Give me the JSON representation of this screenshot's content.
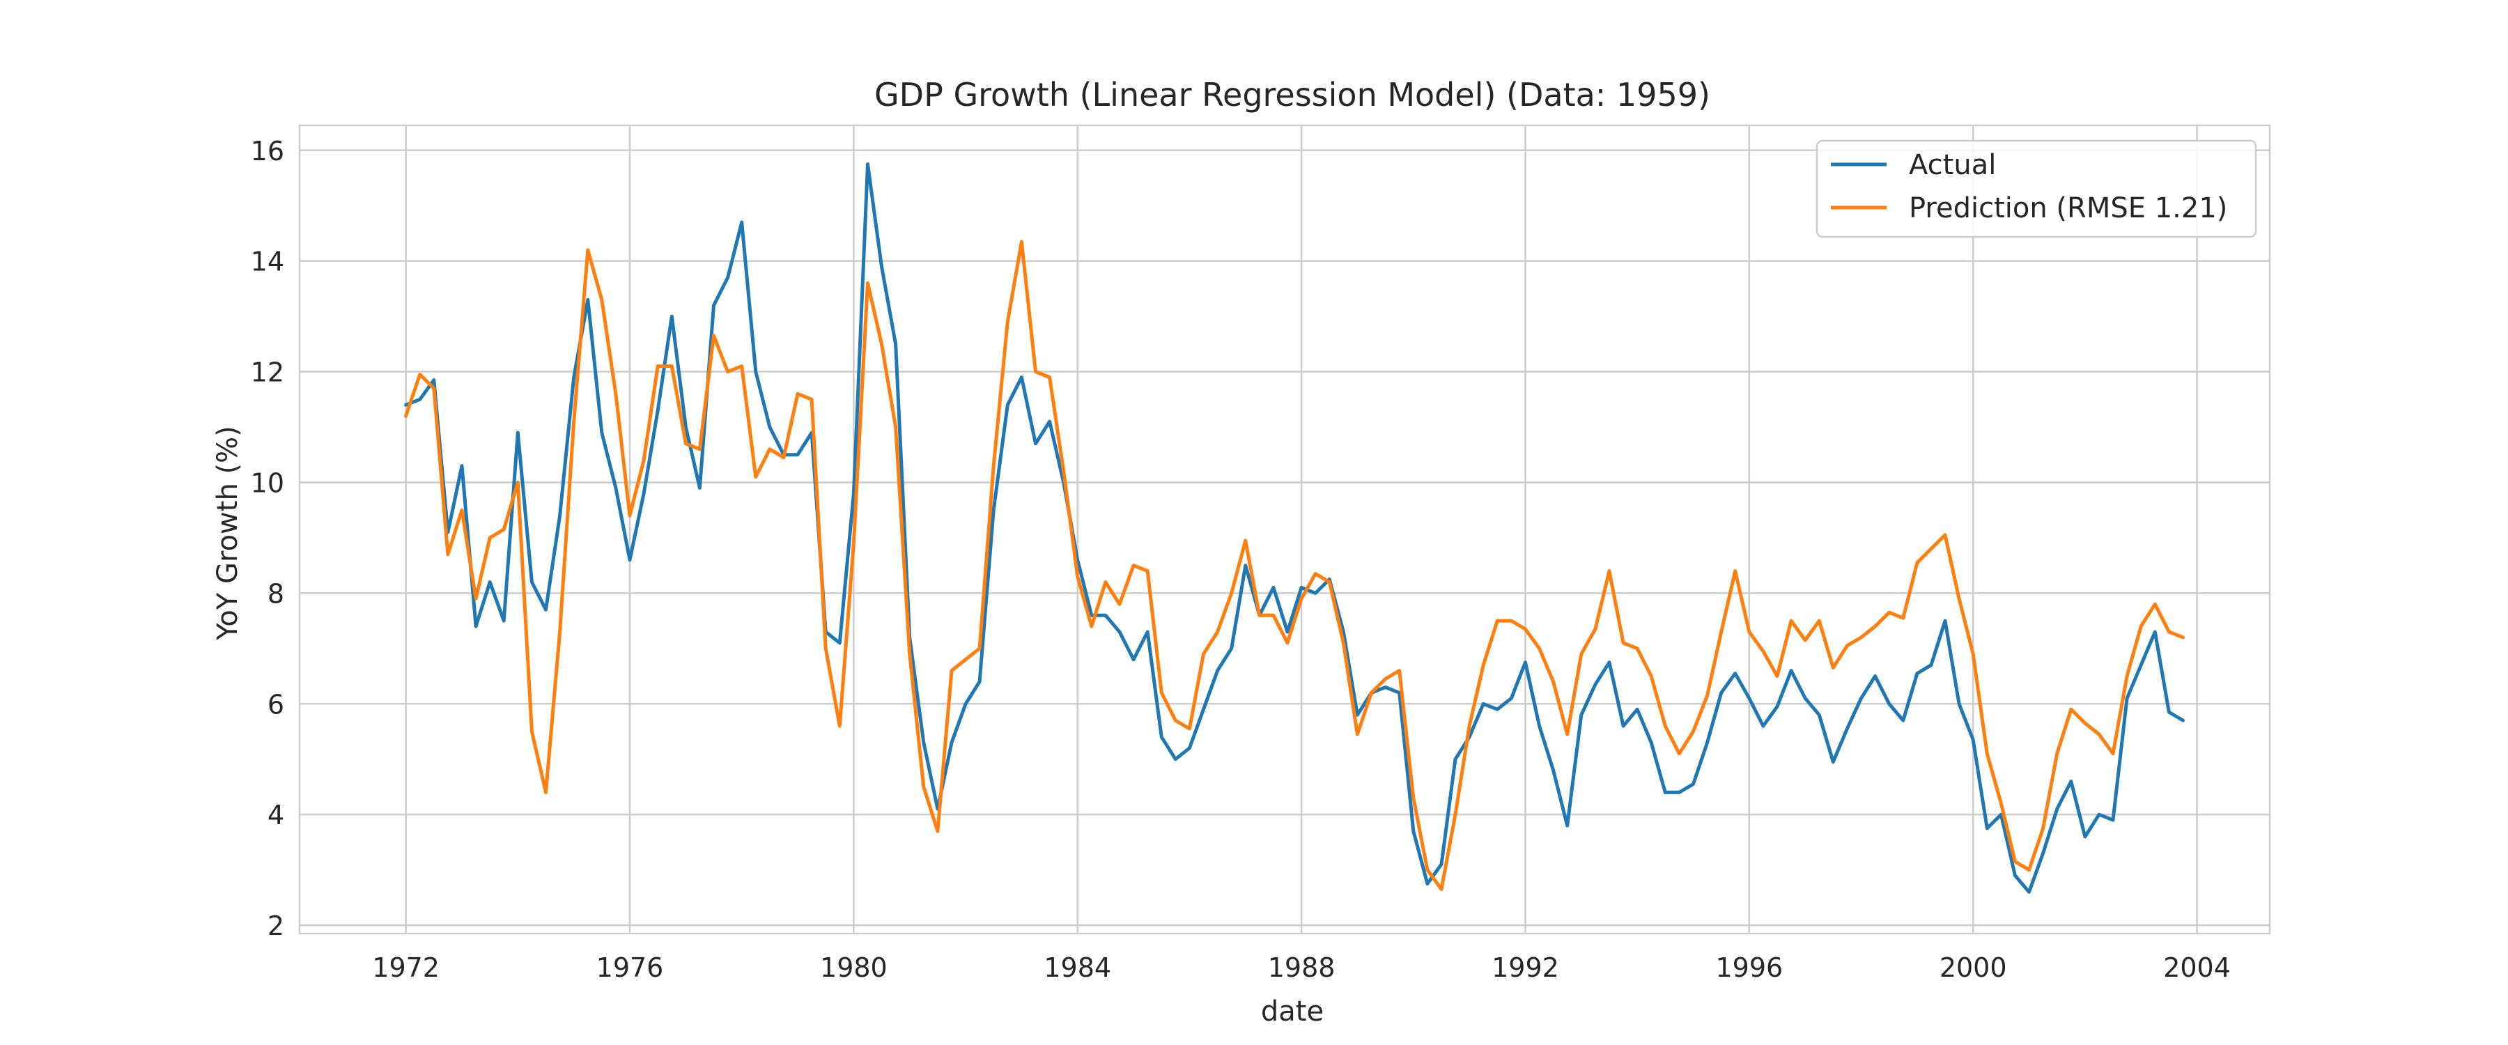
{
  "chart_data": {
    "type": "line",
    "title": "GDP Growth (Linear Regression Model) (Data: 1959)",
    "xlabel": "date",
    "ylabel": "YoY Growth (%)",
    "x_ticks": [
      "1972",
      "1976",
      "1980",
      "1984",
      "1988",
      "1992",
      "1996",
      "2000",
      "2004"
    ],
    "y_ticks": [
      "2",
      "4",
      "6",
      "8",
      "10",
      "12",
      "14",
      "16"
    ],
    "xlim": [
      1970.1,
      2005.3
    ],
    "ylim": [
      1.85,
      16.45
    ],
    "grid": true,
    "legend_position": "top-right",
    "x": [
      "1972-01",
      "1972-04",
      "1972-07",
      "1972-10",
      "1973-01",
      "1973-04",
      "1973-07",
      "1973-10",
      "1974-01",
      "1974-04",
      "1974-07",
      "1974-10",
      "1975-01",
      "1975-04",
      "1975-07",
      "1975-10",
      "1976-01",
      "1976-04",
      "1976-07",
      "1976-10",
      "1977-01",
      "1977-04",
      "1977-07",
      "1977-10",
      "1978-01",
      "1978-04",
      "1978-07",
      "1978-10",
      "1979-01",
      "1979-04",
      "1979-07",
      "1979-10",
      "1980-01",
      "1980-04",
      "1980-07",
      "1980-10",
      "1981-01",
      "1981-04",
      "1981-07",
      "1981-10",
      "1982-01",
      "1982-04",
      "1982-07",
      "1982-10",
      "1983-01",
      "1983-04",
      "1983-07",
      "1983-10",
      "1984-01",
      "1984-04",
      "1984-07",
      "1984-10",
      "1985-01",
      "1985-04",
      "1985-07",
      "1985-10",
      "1986-01",
      "1986-04",
      "1986-07",
      "1986-10",
      "1987-01",
      "1987-04",
      "1987-07",
      "1987-10",
      "1988-01",
      "1988-04",
      "1988-07",
      "1988-10",
      "1989-01",
      "1989-04",
      "1989-07",
      "1989-10",
      "1990-01",
      "1990-04",
      "1990-07",
      "1990-10",
      "1991-01",
      "1991-04",
      "1991-07",
      "1991-10",
      "1992-01",
      "1992-04",
      "1992-07",
      "1992-10",
      "1993-01",
      "1993-04",
      "1993-07",
      "1993-10",
      "1994-01",
      "1994-04",
      "1994-07",
      "1994-10",
      "1995-01",
      "1995-04",
      "1995-07",
      "1995-10",
      "1996-01",
      "1996-04",
      "1996-07",
      "1996-10",
      "1997-01",
      "1997-04",
      "1997-07",
      "1997-10",
      "1998-01",
      "1998-04",
      "1998-07",
      "1998-10",
      "1999-01",
      "1999-04",
      "1999-07",
      "1999-10",
      "2000-01",
      "2000-04",
      "2000-07",
      "2000-10",
      "2001-01",
      "2001-04",
      "2001-07",
      "2001-10",
      "2002-01",
      "2002-04",
      "2002-07",
      "2002-10",
      "2003-01",
      "2003-04",
      "2003-07",
      "2003-10"
    ],
    "series": [
      {
        "name": "Actual",
        "color": "#1f77b4",
        "values": [
          11.4,
          11.5,
          11.85,
          9.1,
          10.3,
          7.4,
          8.2,
          7.5,
          10.9,
          8.2,
          7.7,
          9.4,
          11.9,
          13.3,
          10.9,
          9.9,
          8.6,
          9.8,
          11.3,
          13.0,
          11.0,
          9.9,
          13.2,
          13.7,
          14.7,
          12.0,
          11.0,
          10.5,
          10.5,
          10.9,
          7.3,
          7.1,
          9.8,
          15.75,
          13.9,
          12.5,
          7.2,
          5.3,
          4.1,
          5.3,
          6.0,
          6.4,
          9.5,
          11.4,
          11.9,
          10.7,
          11.1,
          10.0,
          8.6,
          7.6,
          7.6,
          7.3,
          6.8,
          7.3,
          5.4,
          5.0,
          5.2,
          5.9,
          6.6,
          7.0,
          8.5,
          7.6,
          8.1,
          7.3,
          8.1,
          8.0,
          8.25,
          7.3,
          5.8,
          6.2,
          6.3,
          6.2,
          3.7,
          2.75,
          3.1,
          5.0,
          5.4,
          6.0,
          5.9,
          6.1,
          6.75,
          5.6,
          4.8,
          3.8,
          5.8,
          6.35,
          6.75,
          5.6,
          5.9,
          5.3,
          4.4,
          4.4,
          4.55,
          5.3,
          6.2,
          6.55,
          6.1,
          5.6,
          5.95,
          6.6,
          6.1,
          5.8,
          4.95,
          5.55,
          6.1,
          6.5,
          6.0,
          5.7,
          6.55,
          6.7,
          7.5,
          6.0,
          5.35,
          3.75,
          4.0,
          2.9,
          2.6,
          3.3,
          4.1,
          4.6,
          3.6,
          4.0,
          3.9,
          6.1,
          6.7,
          7.3,
          5.85,
          5.7
        ]
      },
      {
        "name": "Prediction (RMSE 1.21)",
        "color": "#ff7f0e",
        "values": [
          11.2,
          11.95,
          11.7,
          8.7,
          9.5,
          7.9,
          9.0,
          9.15,
          10.0,
          5.5,
          4.4,
          7.3,
          11.1,
          14.2,
          13.3,
          11.6,
          9.4,
          10.4,
          12.1,
          12.1,
          10.7,
          10.6,
          12.65,
          12.0,
          12.1,
          10.1,
          10.6,
          10.45,
          11.6,
          11.5,
          7.0,
          5.6,
          8.9,
          13.6,
          12.5,
          11.0,
          6.9,
          4.5,
          3.7,
          6.6,
          6.8,
          7.0,
          10.3,
          12.9,
          14.35,
          12.0,
          11.9,
          10.2,
          8.3,
          7.4,
          8.2,
          7.8,
          8.5,
          8.4,
          6.2,
          5.7,
          5.55,
          6.9,
          7.3,
          8.0,
          8.95,
          7.6,
          7.6,
          7.1,
          7.9,
          8.35,
          8.2,
          7.1,
          5.45,
          6.2,
          6.45,
          6.6,
          4.3,
          3.0,
          2.65,
          4.0,
          5.6,
          6.7,
          7.5,
          7.5,
          7.35,
          7.0,
          6.4,
          5.45,
          6.9,
          7.35,
          8.4,
          7.1,
          7.0,
          6.5,
          5.6,
          5.1,
          5.5,
          6.15,
          7.3,
          8.4,
          7.3,
          6.95,
          6.5,
          7.5,
          7.15,
          7.5,
          6.65,
          7.05,
          7.2,
          7.4,
          7.65,
          7.55,
          8.55,
          8.8,
          9.05,
          7.9,
          6.9,
          5.1,
          4.2,
          3.15,
          3.0,
          3.75,
          5.1,
          5.9,
          5.65,
          5.45,
          5.1,
          6.5,
          7.4,
          7.8,
          7.3,
          7.2
        ]
      }
    ]
  }
}
